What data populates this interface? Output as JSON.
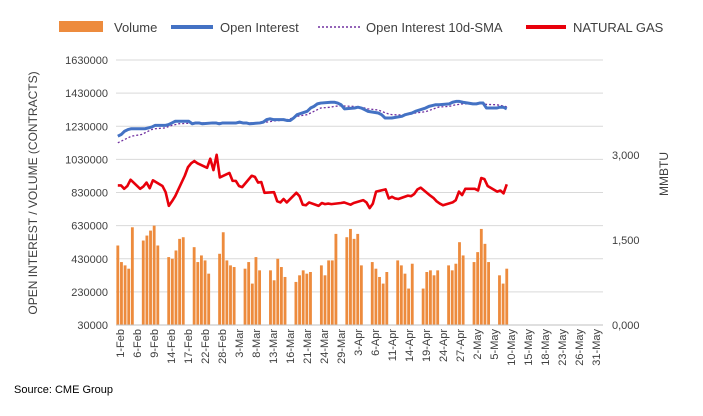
{
  "chart_data": {
    "type": "bar",
    "source": "Source: CME Group",
    "y_left_label": "OPEN INTEREST / VOLUME (CONTRACTS)",
    "y_right_label": "MMBTU",
    "y_left_ticks": [
      "30000",
      "230000",
      "430000",
      "630000",
      "830000",
      "1030000",
      "1230000",
      "1430000",
      "1630000"
    ],
    "y_right_ticks": [
      "0,000",
      "1,500",
      "3,000"
    ],
    "ylim_left": [
      30000,
      1630000
    ],
    "ylim_right": [
      0,
      4.67
    ],
    "x_tick_labels": [
      "1-Feb",
      "6-Feb",
      "9-Feb",
      "14-Feb",
      "17-Feb",
      "22-Feb",
      "28-Feb",
      "3-Mar",
      "8-Mar",
      "13-Mar",
      "16-Mar",
      "21-Mar",
      "24-Mar",
      "29-Mar",
      "3-Apr",
      "6-Apr",
      "11-Apr",
      "14-Apr",
      "19-Apr",
      "24-Apr",
      "27-Apr",
      "2-May",
      "5-May",
      "10-May",
      "15-May",
      "18-May",
      "23-May",
      "26-May",
      "31-May"
    ],
    "grid": true,
    "legend_position": "top",
    "colors": {
      "volume": "#ED8B3D",
      "open_interest": "#4472C4",
      "oi_sma": "#7030A0",
      "gas": "#E8000B",
      "grid": "#D9D9D9",
      "axis": "#BFBFBF"
    },
    "series": [
      {
        "name": "Volume",
        "kind": "bar",
        "axis": "left",
        "values": [
          510000,
          410000,
          390000,
          370000,
          620000,
          540000,
          570000,
          600000,
          630000,
          510000,
          440000,
          430000,
          480000,
          550000,
          560000,
          500000,
          410000,
          450000,
          420000,
          340000,
          460000,
          590000,
          420000,
          390000,
          380000,
          370000,
          410000,
          280000,
          440000,
          360000,
          360000,
          300000,
          430000,
          380000,
          320000,
          290000,
          330000,
          360000,
          340000,
          350000,
          390000,
          330000,
          420000,
          420000,
          580000,
          560000,
          610000,
          550000,
          580000,
          390000,
          410000,
          370000,
          320000,
          280000,
          350000,
          420000,
          390000,
          340000,
          250000,
          400000,
          250000,
          350000,
          360000,
          330000,
          360000,
          390000,
          360000,
          400000,
          530000,
          450000,
          410000,
          470000,
          610000,
          520000,
          410000,
          330000,
          280000,
          370000
        ]
      },
      {
        "name": "Open Interest",
        "kind": "line",
        "axis": "left",
        "values": [
          1170000,
          1180000,
          1200000,
          1210000,
          1215000,
          1215000,
          1215000,
          1220000,
          1225000,
          1235000,
          1235000,
          1240000,
          1250000,
          1260000,
          1260000,
          1260000,
          1245000,
          1250000,
          1250000,
          1245000,
          1250000,
          1250000,
          1245000,
          1250000,
          1250000,
          1250000,
          1255000,
          1250000,
          1250000,
          1245000,
          1250000,
          1255000,
          1270000,
          1275000,
          1270000,
          1270000,
          1265000,
          1265000,
          1280000,
          1300000,
          1320000,
          1340000,
          1350000,
          1365000,
          1370000,
          1375000,
          1375000,
          1370000,
          1360000,
          1335000,
          1340000,
          1345000,
          1340000,
          1330000,
          1320000,
          1310000,
          1300000,
          1280000,
          1280000,
          1280000,
          1290000,
          1300000,
          1305000,
          1310000,
          1320000,
          1340000,
          1350000,
          1355000,
          1360000,
          1360000,
          1365000,
          1375000,
          1380000,
          1380000,
          1375000,
          1365000,
          1365000,
          1370000,
          1370000,
          1340000,
          1340000,
          1345000,
          1345000,
          1335000
        ]
      },
      {
        "name": "Open Interest 10d-SMA",
        "kind": "line",
        "axis": "left",
        "values": [
          1130000,
          1140000,
          1150000,
          1160000,
          1170000,
          1180000,
          1190000,
          1200000,
          1210000,
          1215000,
          1220000,
          1228000,
          1235000,
          1240000,
          1245000,
          1248000,
          1250000,
          1250000,
          1250000,
          1250000,
          1250000,
          1250000,
          1250000,
          1250000,
          1250000,
          1250000,
          1250000,
          1250000,
          1250000,
          1250000,
          1250000,
          1252000,
          1255000,
          1258000,
          1262000,
          1266000,
          1270000,
          1275000,
          1282000,
          1290000,
          1300000,
          1310000,
          1320000,
          1330000,
          1340000,
          1345000,
          1350000,
          1352000,
          1353000,
          1352000,
          1350000,
          1347000,
          1344000,
          1340000,
          1335000,
          1328000,
          1320000,
          1312000,
          1305000,
          1300000,
          1298000,
          1298000,
          1300000,
          1305000,
          1310000,
          1318000,
          1325000,
          1332000,
          1340000,
          1346000,
          1350000,
          1355000,
          1360000,
          1362000,
          1365000,
          1366000,
          1366000,
          1366000,
          1365000,
          1362000,
          1360000,
          1356000,
          1352000,
          1348000
        ]
      },
      {
        "name": "NATURAL GAS",
        "kind": "line",
        "axis": "right",
        "values": [
          2.46,
          2.46,
          2.4,
          2.45,
          2.56,
          2.4,
          2.44,
          2.51,
          2.41,
          2.55,
          2.45,
          2.34,
          2.1,
          2.18,
          2.27,
          2.63,
          2.78,
          2.85,
          2.89,
          2.85,
          2.77,
          2.93,
          2.73,
          3.0,
          2.6,
          2.68,
          2.54,
          2.54,
          2.45,
          2.43,
          2.63,
          2.61,
          2.51,
          2.52,
          2.33,
          2.34,
          2.18,
          2.16,
          2.22,
          2.16,
          2.33,
          2.27,
          2.12,
          2.11,
          2.16,
          2.1,
          2.15,
          2.13,
          2.14,
          2.13,
          2.15,
          2.16,
          2.14,
          2.12,
          2.15,
          2.2,
          2.16,
          2.06,
          2.14,
          2.35,
          2.39,
          2.23,
          2.26,
          2.23,
          2.22,
          2.28,
          2.27,
          2.31,
          2.39,
          2.42,
          2.28,
          2.24,
          2.18,
          2.14,
          2.11,
          2.16,
          2.2,
          2.35,
          2.29,
          2.4,
          2.4,
          2.37,
          2.59,
          2.57,
          2.45,
          2.35,
          2.37,
          2.32,
          2.48
        ]
      }
    ]
  }
}
